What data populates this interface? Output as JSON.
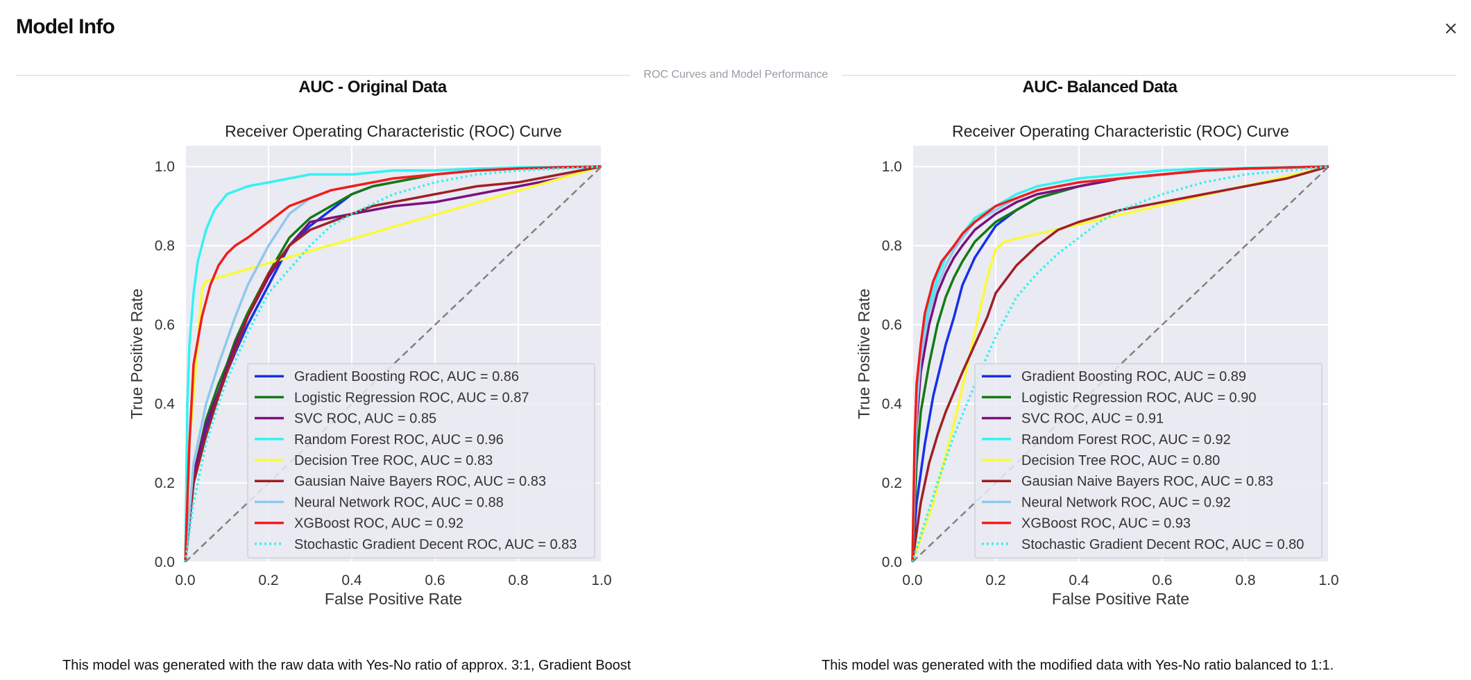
{
  "header": {
    "title": "Model Info"
  },
  "section_label": "ROC Curves and Model Performance",
  "panels": [
    {
      "title": "AUC - Original Data",
      "caption": "This model was generated with the raw data with Yes-No ratio of approx. 3:1, Gradient Boost"
    },
    {
      "title": "AUC- Balanced Data",
      "caption": "This model was generated with the modified data with Yes-No ratio balanced to 1:1."
    }
  ],
  "chart_data": [
    {
      "type": "line",
      "title": "Receiver Operating Characteristic (ROC) Curve",
      "xlabel": "False Positive Rate",
      "ylabel": "True Positive Rate",
      "xlim": [
        0,
        1
      ],
      "ylim": [
        0,
        1
      ],
      "xticks": [
        "0.0",
        "0.2",
        "0.4",
        "0.6",
        "0.8",
        "1.0"
      ],
      "yticks": [
        "0.0",
        "0.2",
        "0.4",
        "0.6",
        "0.8",
        "1.0"
      ],
      "grid": true,
      "legend_position": "bottom-right",
      "series": [
        {
          "name": "Gradient Boosting ROC, AUC = 0.86",
          "color": "#1530e8",
          "style": "solid",
          "x": [
            0,
            0.02,
            0.05,
            0.08,
            0.1,
            0.12,
            0.15,
            0.2,
            0.25,
            0.3,
            0.35,
            0.4,
            0.45,
            0.5,
            0.6,
            0.7,
            0.8,
            0.9,
            1.0
          ],
          "y": [
            0,
            0.2,
            0.34,
            0.42,
            0.48,
            0.53,
            0.6,
            0.7,
            0.8,
            0.85,
            0.89,
            0.93,
            0.95,
            0.96,
            0.98,
            0.99,
            0.995,
            0.998,
            1.0
          ]
        },
        {
          "name": "Logistic Regression ROC, AUC = 0.87",
          "color": "#137a13",
          "style": "solid",
          "x": [
            0,
            0.02,
            0.05,
            0.08,
            0.1,
            0.12,
            0.15,
            0.2,
            0.25,
            0.3,
            0.35,
            0.4,
            0.45,
            0.5,
            0.6,
            0.7,
            0.8,
            0.9,
            1.0
          ],
          "y": [
            0,
            0.22,
            0.36,
            0.45,
            0.5,
            0.56,
            0.63,
            0.73,
            0.82,
            0.87,
            0.9,
            0.93,
            0.95,
            0.96,
            0.98,
            0.99,
            0.995,
            0.998,
            1.0
          ]
        },
        {
          "name": "SVC ROC, AUC = 0.85",
          "color": "#7a117e",
          "style": "solid",
          "x": [
            0,
            0.02,
            0.05,
            0.08,
            0.1,
            0.12,
            0.15,
            0.2,
            0.25,
            0.3,
            0.35,
            0.4,
            0.5,
            0.6,
            0.7,
            0.8,
            0.9,
            1.0
          ],
          "y": [
            0,
            0.22,
            0.35,
            0.43,
            0.49,
            0.55,
            0.62,
            0.72,
            0.8,
            0.86,
            0.87,
            0.88,
            0.9,
            0.91,
            0.93,
            0.95,
            0.97,
            1.0
          ]
        },
        {
          "name": "Random Forest ROC, AUC = 0.96",
          "color": "#33f2f2",
          "style": "solid",
          "x": [
            0,
            0.005,
            0.01,
            0.02,
            0.03,
            0.05,
            0.07,
            0.1,
            0.15,
            0.2,
            0.25,
            0.3,
            0.4,
            0.5,
            0.6,
            0.7,
            0.8,
            1.0
          ],
          "y": [
            0,
            0.4,
            0.55,
            0.68,
            0.76,
            0.84,
            0.89,
            0.93,
            0.95,
            0.96,
            0.97,
            0.98,
            0.98,
            0.99,
            0.99,
            0.995,
            0.998,
            1.0
          ]
        },
        {
          "name": "Decision Tree ROC, AUC = 0.83",
          "color": "#fafa37",
          "style": "solid",
          "x": [
            0,
            0.01,
            0.03,
            0.04,
            0.05,
            1.0
          ],
          "y": [
            0,
            0.3,
            0.55,
            0.69,
            0.71,
            1.0
          ]
        },
        {
          "name": "Gausian Naive Bayers ROC, AUC = 0.83",
          "color": "#a01f24",
          "style": "solid",
          "x": [
            0,
            0.02,
            0.05,
            0.08,
            0.1,
            0.15,
            0.2,
            0.25,
            0.3,
            0.35,
            0.4,
            0.45,
            0.5,
            0.6,
            0.7,
            0.8,
            0.9,
            1.0
          ],
          "y": [
            0,
            0.2,
            0.32,
            0.42,
            0.48,
            0.62,
            0.73,
            0.8,
            0.84,
            0.86,
            0.88,
            0.9,
            0.91,
            0.93,
            0.95,
            0.96,
            0.98,
            1.0
          ]
        },
        {
          "name": "Neural Network ROC, AUC = 0.88",
          "color": "#90c8ee",
          "style": "solid",
          "x": [
            0,
            0.02,
            0.05,
            0.08,
            0.1,
            0.12,
            0.15,
            0.2,
            0.25,
            0.3,
            0.35,
            0.4,
            0.5,
            0.6,
            0.7,
            0.8,
            0.9,
            1.0
          ],
          "y": [
            0,
            0.25,
            0.4,
            0.5,
            0.56,
            0.62,
            0.7,
            0.8,
            0.88,
            0.92,
            0.94,
            0.95,
            0.97,
            0.98,
            0.99,
            0.995,
            0.998,
            1.0
          ]
        },
        {
          "name": "XGBoost ROC, AUC = 0.92",
          "color": "#f01d1d",
          "style": "solid",
          "x": [
            0,
            0.01,
            0.02,
            0.04,
            0.06,
            0.08,
            0.1,
            0.12,
            0.15,
            0.2,
            0.25,
            0.3,
            0.35,
            0.4,
            0.5,
            0.6,
            0.7,
            0.8,
            0.9,
            1.0
          ],
          "y": [
            0,
            0.3,
            0.5,
            0.62,
            0.7,
            0.75,
            0.78,
            0.8,
            0.82,
            0.86,
            0.9,
            0.92,
            0.94,
            0.95,
            0.97,
            0.98,
            0.99,
            0.995,
            0.998,
            1.0
          ]
        },
        {
          "name": "Stochastic Gradient Decent ROC, AUC = 0.83",
          "color": "#33f2f2",
          "style": "dotted",
          "x": [
            0,
            0.02,
            0.05,
            0.08,
            0.1,
            0.15,
            0.2,
            0.25,
            0.3,
            0.35,
            0.4,
            0.5,
            0.6,
            0.7,
            0.8,
            0.9,
            1.0
          ],
          "y": [
            0,
            0.15,
            0.3,
            0.4,
            0.46,
            0.58,
            0.68,
            0.74,
            0.8,
            0.85,
            0.88,
            0.93,
            0.96,
            0.98,
            0.99,
            0.995,
            1.0
          ]
        },
        {
          "name": "",
          "color": "#808080",
          "style": "dashed",
          "x": [
            0,
            1
          ],
          "y": [
            0,
            1
          ]
        }
      ]
    },
    {
      "type": "line",
      "title": "Receiver Operating Characteristic (ROC) Curve",
      "xlabel": "False Positive Rate",
      "ylabel": "True Positive Rate",
      "xlim": [
        0,
        1
      ],
      "ylim": [
        0,
        1
      ],
      "xticks": [
        "0.0",
        "0.2",
        "0.4",
        "0.6",
        "0.8",
        "1.0"
      ],
      "yticks": [
        "0.0",
        "0.2",
        "0.4",
        "0.6",
        "0.8",
        "1.0"
      ],
      "grid": true,
      "legend_position": "bottom-right",
      "series": [
        {
          "name": "Gradient Boosting ROC, AUC = 0.89",
          "color": "#1530e8",
          "style": "solid",
          "x": [
            0,
            0.01,
            0.03,
            0.05,
            0.08,
            0.1,
            0.12,
            0.15,
            0.2,
            0.25,
            0.3,
            0.4,
            0.5,
            0.6,
            0.7,
            0.8,
            0.9,
            1.0
          ],
          "y": [
            0,
            0.15,
            0.3,
            0.42,
            0.55,
            0.62,
            0.7,
            0.77,
            0.85,
            0.89,
            0.92,
            0.95,
            0.97,
            0.98,
            0.99,
            0.995,
            0.998,
            1.0
          ]
        },
        {
          "name": "Logistic Regression ROC, AUC = 0.90",
          "color": "#137a13",
          "style": "solid",
          "x": [
            0,
            0.01,
            0.02,
            0.04,
            0.06,
            0.08,
            0.1,
            0.12,
            0.15,
            0.2,
            0.25,
            0.3,
            0.4,
            0.5,
            0.6,
            0.7,
            0.8,
            1.0
          ],
          "y": [
            0,
            0.25,
            0.38,
            0.5,
            0.6,
            0.67,
            0.72,
            0.76,
            0.81,
            0.86,
            0.89,
            0.92,
            0.95,
            0.97,
            0.98,
            0.99,
            0.995,
            1.0
          ]
        },
        {
          "name": "SVC ROC, AUC = 0.91",
          "color": "#7a117e",
          "style": "solid",
          "x": [
            0,
            0.01,
            0.02,
            0.04,
            0.06,
            0.08,
            0.1,
            0.12,
            0.15,
            0.2,
            0.25,
            0.3,
            0.4,
            0.5,
            0.6,
            0.7,
            0.8,
            1.0
          ],
          "y": [
            0,
            0.35,
            0.48,
            0.6,
            0.68,
            0.73,
            0.77,
            0.8,
            0.84,
            0.88,
            0.91,
            0.93,
            0.95,
            0.97,
            0.98,
            0.99,
            0.995,
            1.0
          ]
        },
        {
          "name": "Random Forest ROC, AUC = 0.92",
          "color": "#33f2f2",
          "style": "solid",
          "x": [
            0,
            0.01,
            0.02,
            0.04,
            0.06,
            0.08,
            0.1,
            0.12,
            0.15,
            0.2,
            0.25,
            0.3,
            0.35,
            0.4,
            0.5,
            0.6,
            0.7,
            1.0
          ],
          "y": [
            0,
            0.4,
            0.55,
            0.65,
            0.72,
            0.77,
            0.8,
            0.83,
            0.87,
            0.9,
            0.93,
            0.95,
            0.96,
            0.97,
            0.98,
            0.99,
            0.995,
            1.0
          ]
        },
        {
          "name": "Decision Tree ROC, AUC = 0.80",
          "color": "#fafa37",
          "style": "solid",
          "x": [
            0,
            0.05,
            0.1,
            0.15,
            0.18,
            0.2,
            0.22,
            1.0
          ],
          "y": [
            0,
            0.15,
            0.35,
            0.58,
            0.72,
            0.79,
            0.81,
            1.0
          ]
        },
        {
          "name": "Gausian Naive Bayers ROC, AUC = 0.83",
          "color": "#a01f24",
          "style": "solid",
          "x": [
            0,
            0.02,
            0.04,
            0.06,
            0.08,
            0.1,
            0.12,
            0.15,
            0.18,
            0.2,
            0.25,
            0.3,
            0.35,
            0.4,
            0.5,
            0.6,
            0.7,
            0.8,
            0.9,
            1.0
          ],
          "y": [
            0,
            0.15,
            0.25,
            0.32,
            0.38,
            0.43,
            0.48,
            0.55,
            0.62,
            0.68,
            0.75,
            0.8,
            0.84,
            0.86,
            0.89,
            0.91,
            0.93,
            0.95,
            0.97,
            1.0
          ]
        },
        {
          "name": "Neural Network ROC, AUC = 0.92",
          "color": "#90c8ee",
          "style": "solid",
          "x": [
            0,
            0.01,
            0.02,
            0.04,
            0.06,
            0.08,
            0.1,
            0.12,
            0.15,
            0.2,
            0.25,
            0.3,
            0.4,
            0.5,
            0.6,
            0.7,
            0.8,
            1.0
          ],
          "y": [
            0,
            0.38,
            0.52,
            0.63,
            0.7,
            0.75,
            0.79,
            0.82,
            0.86,
            0.89,
            0.92,
            0.94,
            0.96,
            0.97,
            0.98,
            0.99,
            0.995,
            1.0
          ]
        },
        {
          "name": "XGBoost ROC, AUC = 0.93",
          "color": "#f01d1d",
          "style": "solid",
          "x": [
            0,
            0.005,
            0.01,
            0.02,
            0.03,
            0.05,
            0.07,
            0.1,
            0.12,
            0.15,
            0.2,
            0.25,
            0.3,
            0.4,
            0.5,
            0.6,
            0.7,
            0.8,
            1.0
          ],
          "y": [
            0,
            0.3,
            0.45,
            0.55,
            0.63,
            0.71,
            0.76,
            0.8,
            0.83,
            0.86,
            0.9,
            0.92,
            0.94,
            0.96,
            0.97,
            0.98,
            0.99,
            0.995,
            1.0
          ]
        },
        {
          "name": "Stochastic Gradient Decent ROC, AUC = 0.80",
          "color": "#33f2f2",
          "style": "dotted",
          "x": [
            0,
            0.03,
            0.06,
            0.1,
            0.15,
            0.2,
            0.25,
            0.3,
            0.35,
            0.4,
            0.45,
            0.5,
            0.6,
            0.7,
            0.8,
            0.9,
            1.0
          ],
          "y": [
            0,
            0.1,
            0.2,
            0.32,
            0.45,
            0.57,
            0.67,
            0.73,
            0.78,
            0.82,
            0.86,
            0.89,
            0.93,
            0.96,
            0.98,
            0.99,
            1.0
          ]
        },
        {
          "name": "",
          "color": "#808080",
          "style": "dashed",
          "x": [
            0,
            1
          ],
          "y": [
            0,
            1
          ]
        }
      ]
    }
  ]
}
